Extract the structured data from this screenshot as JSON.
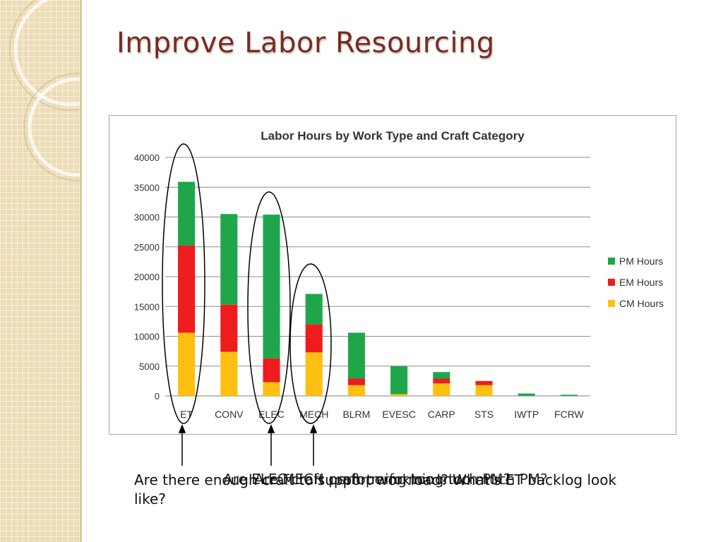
{
  "slide": {
    "title": "Improve Labor Resourcing",
    "captions": [
      "Are there enough craft to support workload? What's ET backlog look like?",
      "Are ELEC craft performing too much PM?",
      "Are MECH craft performing too much PM?"
    ]
  },
  "colors": {
    "pm": "#1fa64b",
    "em": "#ee1c1c",
    "cm": "#fdc010",
    "title": "#7b2a1e"
  },
  "chart_data": {
    "type": "bar",
    "stacked": true,
    "title": "Labor Hours by Work Type and Craft Category",
    "xlabel": "",
    "ylabel": "",
    "ylim": [
      0,
      40000
    ],
    "yticks": [
      0,
      5000,
      10000,
      15000,
      20000,
      25000,
      30000,
      35000,
      40000
    ],
    "grid": true,
    "legend": "right",
    "categories": [
      "ET",
      "CONV",
      "ELEC",
      "MECH",
      "BLRM",
      "EVESC",
      "CARP",
      "STS",
      "IWTP",
      "FCRW"
    ],
    "series": [
      {
        "name": "CM Hours",
        "color": "#fdc010",
        "values": [
          10600,
          7400,
          2300,
          7300,
          1800,
          300,
          2100,
          1800,
          0,
          0
        ]
      },
      {
        "name": "EM Hours",
        "color": "#ee1c1c",
        "values": [
          14600,
          7900,
          4000,
          4700,
          1100,
          0,
          800,
          700,
          0,
          0
        ]
      },
      {
        "name": "PM Hours",
        "color": "#1fa64b",
        "values": [
          10700,
          15200,
          24100,
          5100,
          7700,
          4700,
          1100,
          0,
          400,
          200
        ]
      }
    ],
    "highlighted": [
      "ET",
      "ELEC",
      "MECH"
    ]
  }
}
